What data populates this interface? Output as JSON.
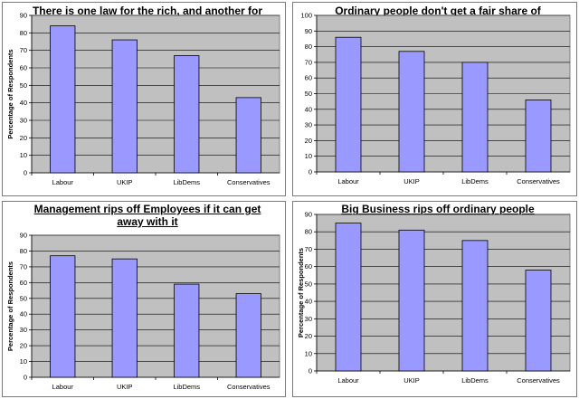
{
  "colors": {
    "plot_bg": "#c0c0c0",
    "bar_fill": "#9999ff",
    "bar_stroke": "#000000",
    "grid": "#000000"
  },
  "chart_data": [
    {
      "type": "bar",
      "title": "There is one law for the rich, and another for the poor",
      "ylabel": "Percentage of Respondents",
      "categories": [
        "Labour",
        "UKIP",
        "LibDems",
        "Conservatives"
      ],
      "values": [
        84,
        76,
        67,
        43
      ],
      "ylim": [
        0,
        90
      ],
      "ytick_step": 10,
      "grid": true,
      "legend": "none"
    },
    {
      "type": "bar",
      "title": "Ordinary people don't get a fair share of national wealth",
      "ylabel": "",
      "categories": [
        "Labour",
        "UKIP",
        "LibDems",
        "Conservatives"
      ],
      "values": [
        86,
        77,
        70,
        46
      ],
      "ylim": [
        0,
        100
      ],
      "ytick_step": 10,
      "grid": true,
      "legend": "none"
    },
    {
      "type": "bar",
      "title": "Management rips off Employees if it can get away with it",
      "ylabel": "Percentage of Respondents",
      "categories": [
        "Labour",
        "UKIP",
        "LibDems",
        "Conservatives"
      ],
      "values": [
        77,
        75,
        59,
        53
      ],
      "ylim": [
        0,
        90
      ],
      "ytick_step": 10,
      "grid": true,
      "legend": "none"
    },
    {
      "type": "bar",
      "title": "Big Business rips off ordinary people",
      "ylabel": "Percentage of Respondents",
      "categories": [
        "Labour",
        "UKIP",
        "LibDems",
        "Conservatives"
      ],
      "values": [
        85,
        81,
        75,
        58
      ],
      "ylim": [
        0,
        90
      ],
      "ytick_step": 10,
      "grid": true,
      "legend": "none"
    }
  ]
}
